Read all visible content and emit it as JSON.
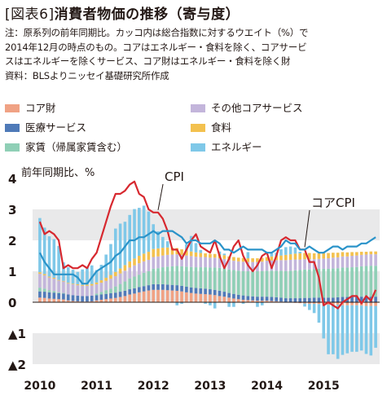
{
  "title": {
    "bracket_open": "[",
    "label": "図表6",
    "bracket_close": "]",
    "text": "消費者物価の推移（寄与度）"
  },
  "notes": [
    "注：原系列の前年同期比。カッコ内は総合指数に対するウエイト（%）で",
    "2014年12月の時点のもの。コアはエネルギー・食料を除く、コアサービ",
    "スはエネルギーを除くサービス、コア財はエネルギー・食料を除く財",
    "資料：BLSよりニッセイ基礎研究所作成"
  ],
  "legend": [
    {
      "label": "コア財",
      "color": "#f0a284"
    },
    {
      "label": "その他コアサービス",
      "color": "#c3b5db"
    },
    {
      "label": "医療サービス",
      "color": "#4f7ab8"
    },
    {
      "label": "食料",
      "color": "#f3c14f"
    },
    {
      "label": "家賃（帰属家賃含む）",
      "color": "#8fcfb6"
    },
    {
      "label": "エネルギー",
      "color": "#7fc8e8"
    }
  ],
  "chart_data": {
    "type": "bar",
    "y_unit_label": "前年同期比、%",
    "ylim": [
      -2.3,
      4
    ],
    "yticks": [
      {
        "value": 4,
        "label": "4"
      },
      {
        "value": 3,
        "label": "3"
      },
      {
        "value": 2,
        "label": "2"
      },
      {
        "value": 1,
        "label": "1"
      },
      {
        "value": 0,
        "label": "0"
      },
      {
        "value": -1,
        "label": "▲1"
      },
      {
        "value": -2,
        "label": "▲2"
      }
    ],
    "grid_bands": true,
    "x_labels": [
      "2010",
      "2011",
      "2012",
      "2013",
      "2014",
      "2015"
    ],
    "months_start": "2010-01",
    "annotations": [
      {
        "text": "CPI",
        "series": "CPI",
        "month_index": 25
      },
      {
        "text": "コアCPI",
        "series": "コアCPI",
        "month_index": 56
      }
    ],
    "series": [
      {
        "name": "コア財",
        "color": "#f0a284",
        "values": [
          0.15,
          0.14,
          0.12,
          0.11,
          0.1,
          0.09,
          0.06,
          0.04,
          0.03,
          0.02,
          0.02,
          0.03,
          0.06,
          0.08,
          0.1,
          0.12,
          0.14,
          0.17,
          0.2,
          0.25,
          0.28,
          0.32,
          0.35,
          0.38,
          0.4,
          0.4,
          0.4,
          0.39,
          0.38,
          0.37,
          0.35,
          0.32,
          0.3,
          0.28,
          0.27,
          0.26,
          0.25,
          0.23,
          0.2,
          0.18,
          0.15,
          0.12,
          0.1,
          0.08,
          0.07,
          0.06,
          0.05,
          0.05,
          0.05,
          0.04,
          0.03,
          0.02,
          0.0,
          -0.01,
          -0.02,
          -0.03,
          -0.04,
          -0.05,
          -0.05,
          -0.06,
          -0.07,
          -0.08,
          -0.08,
          -0.08,
          -0.1,
          -0.1,
          -0.1,
          -0.1,
          -0.11,
          -0.12,
          -0.12,
          -0.12
        ]
      },
      {
        "name": "医療サービス",
        "color": "#4f7ab8",
        "values": [
          0.2,
          0.2,
          0.2,
          0.2,
          0.19,
          0.19,
          0.19,
          0.19,
          0.18,
          0.18,
          0.18,
          0.18,
          0.17,
          0.17,
          0.17,
          0.17,
          0.17,
          0.17,
          0.17,
          0.17,
          0.17,
          0.17,
          0.17,
          0.17,
          0.18,
          0.18,
          0.18,
          0.18,
          0.18,
          0.18,
          0.18,
          0.18,
          0.18,
          0.18,
          0.18,
          0.18,
          0.17,
          0.17,
          0.17,
          0.16,
          0.15,
          0.15,
          0.14,
          0.14,
          0.13,
          0.13,
          0.13,
          0.13,
          0.13,
          0.13,
          0.13,
          0.13,
          0.13,
          0.13,
          0.13,
          0.13,
          0.14,
          0.14,
          0.15,
          0.15,
          0.15,
          0.15,
          0.15,
          0.16,
          0.17,
          0.17,
          0.17,
          0.17,
          0.18,
          0.18,
          0.18,
          0.18
        ]
      },
      {
        "name": "家賃（帰属家賃含む）",
        "color": "#8fcfb6",
        "values": [
          0.12,
          0.1,
          0.07,
          0.05,
          0.03,
          0.02,
          0.0,
          0.0,
          0.0,
          0.0,
          0.0,
          0.0,
          0.05,
          0.08,
          0.12,
          0.15,
          0.2,
          0.25,
          0.3,
          0.35,
          0.38,
          0.4,
          0.43,
          0.45,
          0.5,
          0.52,
          0.55,
          0.58,
          0.6,
          0.62,
          0.63,
          0.65,
          0.66,
          0.67,
          0.68,
          0.69,
          0.7,
          0.72,
          0.74,
          0.75,
          0.76,
          0.77,
          0.78,
          0.79,
          0.8,
          0.81,
          0.82,
          0.83,
          0.84,
          0.85,
          0.86,
          0.87,
          0.88,
          0.89,
          0.9,
          0.91,
          0.92,
          0.92,
          0.92,
          0.93,
          0.93,
          0.93,
          0.94,
          0.94,
          0.95,
          0.95,
          0.96,
          0.97,
          0.98,
          0.99,
          1.0,
          1.0
        ]
      },
      {
        "name": "その他コアサービス",
        "color": "#c3b5db",
        "values": [
          0.45,
          0.43,
          0.41,
          0.4,
          0.38,
          0.37,
          0.36,
          0.35,
          0.34,
          0.33,
          0.33,
          0.33,
          0.3,
          0.3,
          0.3,
          0.32,
          0.33,
          0.34,
          0.35,
          0.35,
          0.36,
          0.37,
          0.37,
          0.37,
          0.38,
          0.38,
          0.38,
          0.38,
          0.38,
          0.38,
          0.37,
          0.36,
          0.35,
          0.34,
          0.33,
          0.33,
          0.32,
          0.32,
          0.31,
          0.31,
          0.3,
          0.3,
          0.3,
          0.3,
          0.3,
          0.3,
          0.3,
          0.3,
          0.32,
          0.33,
          0.34,
          0.34,
          0.35,
          0.35,
          0.35,
          0.34,
          0.33,
          0.33,
          0.32,
          0.32,
          0.33,
          0.34,
          0.35,
          0.35,
          0.36,
          0.36,
          0.37,
          0.37,
          0.37,
          0.37,
          0.37,
          0.37
        ]
      },
      {
        "name": "食料",
        "color": "#f3c14f",
        "values": [
          0.05,
          0.04,
          0.03,
          0.03,
          0.02,
          0.02,
          0.02,
          0.02,
          0.03,
          0.03,
          0.04,
          0.05,
          0.06,
          0.08,
          0.1,
          0.12,
          0.14,
          0.16,
          0.18,
          0.2,
          0.22,
          0.24,
          0.25,
          0.26,
          0.26,
          0.26,
          0.25,
          0.24,
          0.22,
          0.2,
          0.18,
          0.16,
          0.15,
          0.14,
          0.13,
          0.12,
          0.12,
          0.12,
          0.12,
          0.12,
          0.12,
          0.12,
          0.12,
          0.12,
          0.12,
          0.12,
          0.12,
          0.12,
          0.12,
          0.13,
          0.14,
          0.15,
          0.17,
          0.18,
          0.19,
          0.2,
          0.2,
          0.2,
          0.19,
          0.18,
          0.18,
          0.17,
          0.16,
          0.15,
          0.14,
          0.13,
          0.12,
          0.11,
          0.1,
          0.09,
          0.09,
          0.09
        ]
      },
      {
        "name": "エネルギー",
        "color": "#7fc8e8",
        "values": [
          1.75,
          1.5,
          1.3,
          1.25,
          1.1,
          0.6,
          0.5,
          0.45,
          0.4,
          0.5,
          0.55,
          0.6,
          0.4,
          0.5,
          0.75,
          1.0,
          1.4,
          1.45,
          1.4,
          1.5,
          1.6,
          1.55,
          1.55,
          1.3,
          0.8,
          0.55,
          0.35,
          0.2,
          0.0,
          -0.1,
          -0.05,
          0.2,
          0.5,
          0.3,
          0.1,
          -0.05,
          -0.1,
          -0.2,
          0.1,
          0.05,
          -0.15,
          -0.15,
          0.0,
          -0.05,
          0.2,
          0.0,
          -0.15,
          -0.1,
          0.0,
          0.1,
          0.1,
          0.2,
          0.25,
          0.25,
          0.2,
          0.05,
          -0.1,
          -0.2,
          -0.3,
          -0.6,
          -1.1,
          -1.6,
          -1.6,
          -1.75,
          -1.6,
          -1.55,
          -1.5,
          -1.5,
          -1.45,
          -1.55,
          -1.6,
          -1.35
        ]
      },
      {
        "name": "CPI",
        "type": "line",
        "color": "#d7282f",
        "values": [
          2.6,
          2.2,
          2.3,
          2.2,
          2.0,
          1.1,
          1.2,
          1.1,
          1.1,
          1.2,
          1.1,
          1.4,
          1.6,
          2.1,
          2.6,
          3.1,
          3.5,
          3.5,
          3.6,
          3.8,
          3.9,
          3.5,
          3.4,
          3.0,
          2.9,
          2.9,
          2.7,
          2.3,
          1.7,
          1.7,
          1.4,
          1.7,
          2.0,
          2.2,
          1.8,
          1.7,
          1.6,
          2.0,
          1.5,
          1.1,
          1.4,
          1.8,
          2.0,
          1.5,
          1.2,
          1.0,
          1.2,
          1.5,
          1.6,
          1.1,
          1.5,
          2.0,
          2.1,
          2.0,
          2.0,
          1.7,
          1.7,
          1.3,
          1.3,
          0.8,
          -0.1,
          0.0,
          -0.1,
          -0.2,
          0.0,
          0.1,
          0.2,
          0.2,
          -0.04,
          0.2,
          0.05,
          0.4
        ]
      },
      {
        "name": "コアCPI",
        "type": "line",
        "color": "#2a93c9",
        "values": [
          1.6,
          1.3,
          1.1,
          0.9,
          0.9,
          0.9,
          0.9,
          0.9,
          0.8,
          0.6,
          0.6,
          0.8,
          1.0,
          1.1,
          1.2,
          1.3,
          1.5,
          1.6,
          1.8,
          2.0,
          2.0,
          2.1,
          2.1,
          2.2,
          2.3,
          2.2,
          2.3,
          2.3,
          2.3,
          2.2,
          2.1,
          1.9,
          2.0,
          2.0,
          1.9,
          1.9,
          1.9,
          2.0,
          1.9,
          1.7,
          1.7,
          1.6,
          1.7,
          1.8,
          1.7,
          1.7,
          1.7,
          1.7,
          1.6,
          1.6,
          1.7,
          1.8,
          2.0,
          1.9,
          1.9,
          1.7,
          1.7,
          1.8,
          1.7,
          1.6,
          1.6,
          1.7,
          1.8,
          1.8,
          1.7,
          1.8,
          1.8,
          1.8,
          1.9,
          1.9,
          2.0,
          2.1
        ]
      }
    ]
  }
}
